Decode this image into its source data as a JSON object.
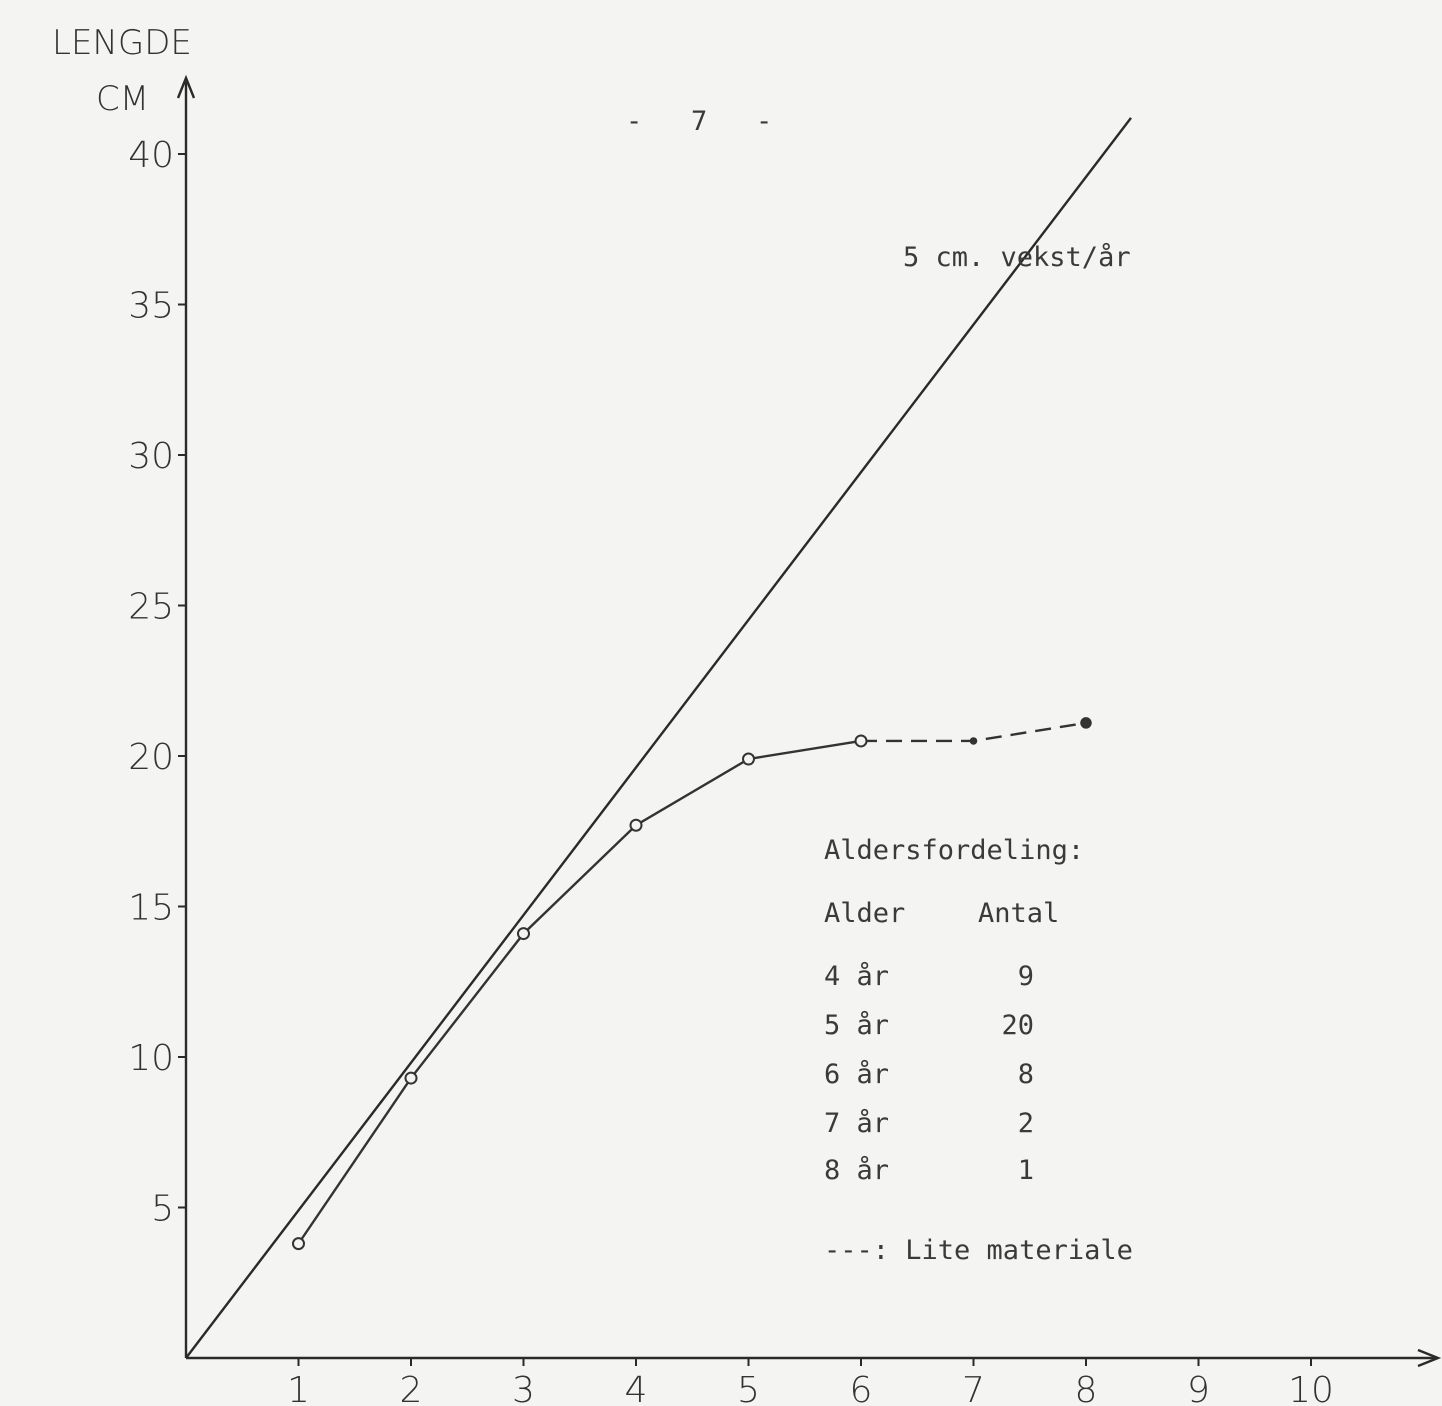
{
  "page_number": "-   7   -",
  "chart_data": {
    "type": "line",
    "ylabel_line1": "LENGDE",
    "ylabel_line2": "CM",
    "xlabel": "",
    "xlim": [
      0,
      11
    ],
    "ylim": [
      0,
      42
    ],
    "x_ticks": [
      "1",
      "2",
      "3",
      "4",
      "5",
      "6",
      "7",
      "8",
      "9",
      "10"
    ],
    "y_ticks": [
      "5",
      "10",
      "15",
      "20",
      "25",
      "30",
      "35",
      "40"
    ],
    "reference_line": {
      "label": "5 cm. vekst/år",
      "points": [
        {
          "x": 0,
          "y": 0
        },
        {
          "x": 8.4,
          "y": 41.2
        }
      ]
    },
    "series": [
      {
        "style": "solid",
        "points": [
          {
            "x": 1,
            "y": 3.8
          },
          {
            "x": 2,
            "y": 9.3
          },
          {
            "x": 3,
            "y": 14.1
          },
          {
            "x": 4,
            "y": 17.7
          },
          {
            "x": 5,
            "y": 19.9
          },
          {
            "x": 6,
            "y": 20.5
          }
        ]
      },
      {
        "style": "dashed",
        "points": [
          {
            "x": 6,
            "y": 20.5
          },
          {
            "x": 7,
            "y": 20.5
          },
          {
            "x": 8,
            "y": 21.1
          }
        ]
      }
    ],
    "age_table": {
      "title": "Aldersfordeling:",
      "col_age": "Alder",
      "col_count": "Antal",
      "rows": [
        {
          "age": "4 år",
          "count": "9"
        },
        {
          "age": "5 år",
          "count": "20"
        },
        {
          "age": "6 år",
          "count": "8"
        },
        {
          "age": "7 år",
          "count": "2"
        },
        {
          "age": "8 år",
          "count": "1"
        }
      ],
      "legend_text": "---: Lite materiale"
    }
  }
}
